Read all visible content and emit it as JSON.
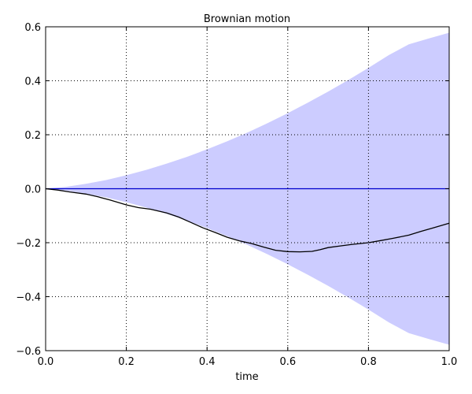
{
  "chart_data": {
    "type": "line",
    "title": "Brownian motion",
    "xlabel": "time",
    "ylabel": "",
    "xlim": [
      0.0,
      1.0
    ],
    "ylim": [
      -0.6,
      0.6
    ],
    "grid": true,
    "x_ticks": [
      0.0,
      0.2,
      0.4,
      0.6,
      0.8,
      1.0
    ],
    "x_tick_labels": [
      "0.0",
      "0.2",
      "0.4",
      "0.6",
      "0.8",
      "1.0"
    ],
    "y_ticks": [
      -0.6,
      -0.4,
      -0.2,
      0.0,
      0.2,
      0.4,
      0.6
    ],
    "y_tick_labels": [
      "−0.6",
      "−0.4",
      "−0.2",
      "0.0",
      "0.2",
      "0.4",
      "0.6"
    ],
    "band": {
      "color": "#ccccff",
      "x": [
        0.0,
        0.05,
        0.1,
        0.15,
        0.2,
        0.25,
        0.3,
        0.35,
        0.4,
        0.45,
        0.5,
        0.55,
        0.6,
        0.65,
        0.7,
        0.75,
        0.8,
        0.85,
        0.9,
        0.95,
        1.0
      ],
      "upper": [
        0.0,
        0.007,
        0.018,
        0.032,
        0.05,
        0.07,
        0.093,
        0.118,
        0.146,
        0.176,
        0.208,
        0.243,
        0.28,
        0.319,
        0.36,
        0.403,
        0.448,
        0.495,
        0.535,
        0.557,
        0.578
      ],
      "lower": [
        0.0,
        -0.007,
        -0.018,
        -0.032,
        -0.05,
        -0.07,
        -0.093,
        -0.118,
        -0.146,
        -0.176,
        -0.208,
        -0.243,
        -0.28,
        -0.319,
        -0.36,
        -0.403,
        -0.448,
        -0.495,
        -0.535,
        -0.557,
        -0.578
      ]
    },
    "series": [
      {
        "color": "#0000cc",
        "x": [
          0.0,
          1.0
        ],
        "y": [
          0.0,
          0.0
        ]
      },
      {
        "color": "#000000",
        "x": [
          0.0,
          0.03,
          0.06,
          0.1,
          0.13,
          0.16,
          0.2,
          0.23,
          0.26,
          0.3,
          0.33,
          0.36,
          0.39,
          0.42,
          0.45,
          0.48,
          0.51,
          0.54,
          0.57,
          0.6,
          0.63,
          0.66,
          0.68,
          0.7,
          0.73,
          0.76,
          0.8,
          0.83,
          0.86,
          0.9,
          0.93,
          0.96,
          1.0
        ],
        "y": [
          0.0,
          -0.005,
          -0.012,
          -0.02,
          -0.03,
          -0.042,
          -0.06,
          -0.07,
          -0.076,
          -0.09,
          -0.105,
          -0.125,
          -0.145,
          -0.162,
          -0.18,
          -0.193,
          -0.203,
          -0.216,
          -0.228,
          -0.233,
          -0.234,
          -0.232,
          -0.226,
          -0.218,
          -0.212,
          -0.206,
          -0.2,
          -0.192,
          -0.184,
          -0.172,
          -0.158,
          -0.145,
          -0.128
        ]
      }
    ]
  }
}
